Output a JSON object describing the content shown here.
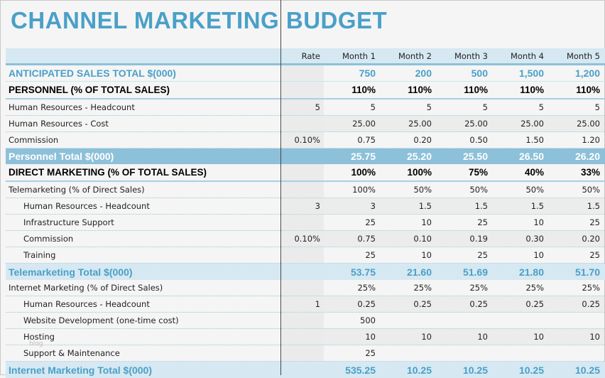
{
  "title": "CHANNEL MARKETING BUDGET",
  "watermark": "blog",
  "header": {
    "label": "",
    "rate": "Rate",
    "months": [
      "Month 1",
      "Month 2",
      "Month 3",
      "Month 4",
      "Month 5"
    ]
  },
  "rows": [
    {
      "type": "sales",
      "label": "ANTICIPATED SALES TOTAL $(000)",
      "rate": "",
      "values": [
        "750",
        "200",
        "500",
        "1,500",
        "1,200"
      ]
    },
    {
      "type": "section",
      "label": "PERSONNEL (% OF TOTAL SALES)",
      "rate": "",
      "values": [
        "110%",
        "110%",
        "110%",
        "110%",
        "110%"
      ]
    },
    {
      "type": "item",
      "label": "Human Resources - Headcount",
      "rate": "5",
      "values": [
        "5",
        "5",
        "5",
        "5",
        "5"
      ]
    },
    {
      "type": "item",
      "alt": true,
      "label": "Human Resources - Cost",
      "rate": "",
      "values": [
        "25.00",
        "25.00",
        "25.00",
        "25.00",
        "25.00"
      ]
    },
    {
      "type": "item",
      "label": "Commission",
      "rate": "0.10%",
      "values": [
        "0.75",
        "0.20",
        "0.50",
        "1.50",
        "1.20"
      ]
    },
    {
      "type": "total-dark",
      "label": "Personnel Total $(000)",
      "rate": "",
      "values": [
        "25.75",
        "25.20",
        "25.50",
        "26.50",
        "26.20"
      ]
    },
    {
      "type": "section",
      "label": "DIRECT MARKETING (% OF TOTAL SALES)",
      "rate": "",
      "values": [
        "100%",
        "100%",
        "75%",
        "40%",
        "33%"
      ]
    },
    {
      "type": "item",
      "label": "Telemarketing (% of Direct Sales)",
      "rate": "",
      "values": [
        "100%",
        "50%",
        "50%",
        "50%",
        "50%"
      ]
    },
    {
      "type": "item",
      "indent": true,
      "alt": true,
      "label": "Human Resources - Headcount",
      "rate": "3",
      "values": [
        "3",
        "1.5",
        "1.5",
        "1.5",
        "1.5"
      ]
    },
    {
      "type": "item",
      "indent": true,
      "label": "Infrastructure Support",
      "rate": "",
      "values": [
        "25",
        "10",
        "25",
        "10",
        "25"
      ]
    },
    {
      "type": "item",
      "indent": true,
      "alt": true,
      "label": "Commission",
      "rate": "0.10%",
      "values": [
        "0.75",
        "0.10",
        "0.19",
        "0.30",
        "0.20"
      ]
    },
    {
      "type": "item",
      "indent": true,
      "label": "Training",
      "rate": "",
      "values": [
        "25",
        "10",
        "25",
        "10",
        "25"
      ]
    },
    {
      "type": "total-light",
      "label": "Telemarketing Total $(000)",
      "rate": "",
      "values": [
        "53.75",
        "21.60",
        "51.69",
        "21.80",
        "51.70"
      ]
    },
    {
      "type": "item",
      "label": "Internet Marketing (% of Direct Sales)",
      "rate": "",
      "values": [
        "25%",
        "25%",
        "25%",
        "25%",
        "25%"
      ]
    },
    {
      "type": "item",
      "indent": true,
      "alt": true,
      "label": "Human Resources - Headcount",
      "rate": "1",
      "values": [
        "0.25",
        "0.25",
        "0.25",
        "0.25",
        "0.25"
      ]
    },
    {
      "type": "item",
      "indent": true,
      "label": "Website Development (one-time cost)",
      "rate": "",
      "values": [
        "500",
        "",
        "",
        "",
        ""
      ]
    },
    {
      "type": "item",
      "indent": true,
      "alt": true,
      "label": "Hosting",
      "rate": "",
      "values": [
        "10",
        "10",
        "10",
        "10",
        "10"
      ]
    },
    {
      "type": "item",
      "indent": true,
      "label": "Support & Maintenance",
      "rate": "",
      "values": [
        "25",
        "",
        "",
        "",
        ""
      ]
    },
    {
      "type": "total-light",
      "label": "Internet Marketing Total $(000)",
      "rate": "",
      "values": [
        "535.25",
        "10.25",
        "10.25",
        "10.25",
        "10.25"
      ]
    }
  ]
}
